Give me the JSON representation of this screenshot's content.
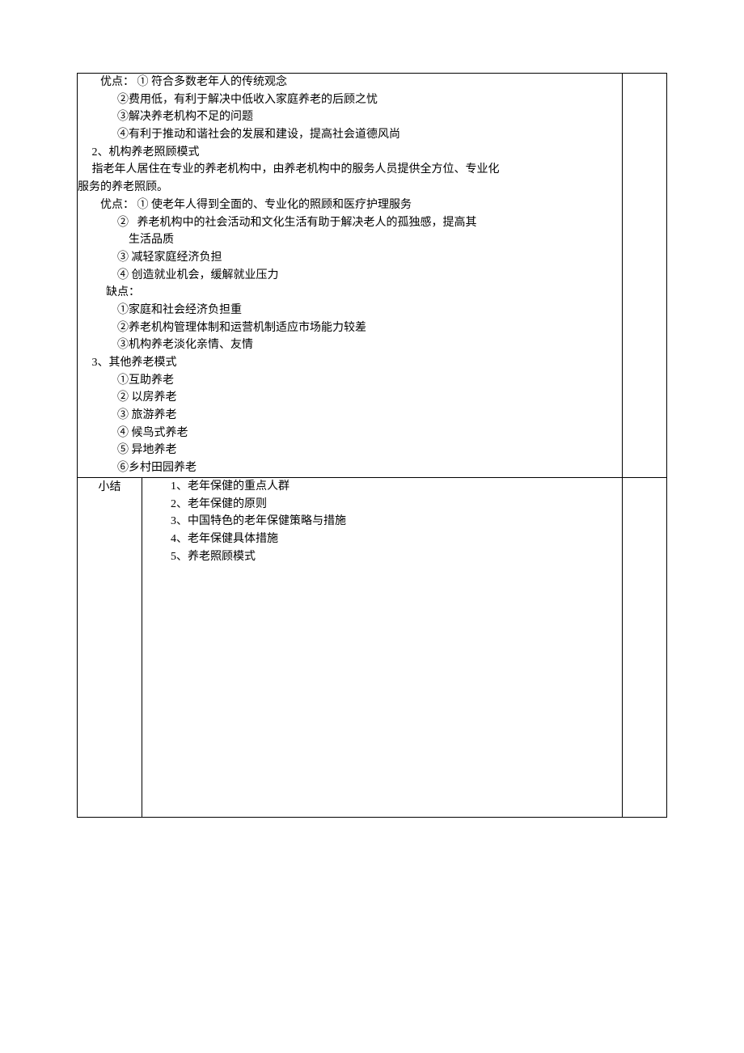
{
  "row1": {
    "lines": [
      "        优点： ① 符合多数老年人的传统观念",
      "              ②费用低，有利于解决中低收入家庭养老的后顾之忧",
      "              ③解决养老机构不足的问题",
      "              ④有利于推动和谐社会的发展和建设，提高社会道德风尚",
      "     2、机构养老照顾模式",
      "     指老年人居住在专业的养老机构中，由养老机构中的服务人员提供全方位、专业化",
      "服务的养老照顾。",
      "        优点： ① 使老年人得到全面的、专业化的照顾和医疗护理服务",
      "              ②   养老机构中的社会活动和文化生活有助于解决老人的孤独感，提高其",
      "                  生活品质",
      "              ③ 减轻家庭经济负担",
      "              ④ 创造就业机会，缓解就业压力",
      "          缺点：",
      "              ①家庭和社会经济负担重",
      "              ②养老机构管理体制和运营机制适应市场能力较差",
      "              ③机构养老淡化亲情、友情",
      "     3、其他养老模式",
      "              ①互助养老",
      "              ② 以房养老",
      "              ③ 旅游养老",
      "              ④ 候鸟式养老",
      "              ⑤ 异地养老",
      "              ⑥乡村田园养老",
      "",
      ""
    ]
  },
  "row2": {
    "label": "小结",
    "lines": [
      "          1、老年保健的重点人群",
      "          2、老年保健的原则",
      "          3、中国特色的老年保健策略与措施",
      "          4、老年保健具体措施",
      "          5、养老照顾模式"
    ]
  }
}
